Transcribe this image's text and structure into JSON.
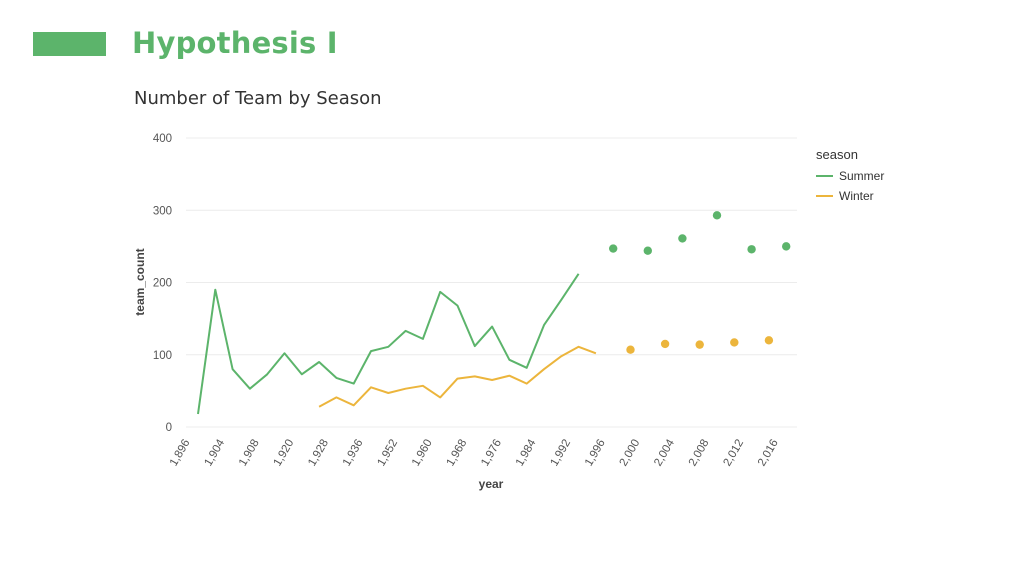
{
  "slide": {
    "title": "Hypothesis I",
    "accent_color": "#5cb46b"
  },
  "chart_data": {
    "type": "line",
    "title": "Number of Team by Season",
    "xlabel": "year",
    "ylabel": "team_count",
    "xlim": [
      1896,
      2016
    ],
    "ylim": [
      0,
      400
    ],
    "x_ticks": [
      "1,896",
      "1,904",
      "1,908",
      "1,920",
      "1,928",
      "1,936",
      "1,952",
      "1,960",
      "1,968",
      "1,976",
      "1,984",
      "1,992",
      "1,996",
      "2,000",
      "2,004",
      "2,008",
      "2,012",
      "2,016"
    ],
    "y_ticks": [
      0,
      100,
      200,
      300,
      400
    ],
    "grid": "horizontal",
    "legend": {
      "title": "season",
      "position": "right"
    },
    "series": [
      {
        "name": "Summer",
        "color": "#5cb46b",
        "line": [
          [
            0,
            18
          ],
          [
            1,
            190
          ],
          [
            2,
            80
          ],
          [
            3,
            53
          ],
          [
            4,
            73
          ],
          [
            5,
            102
          ],
          [
            6,
            73
          ],
          [
            7,
            90
          ],
          [
            8,
            68
          ],
          [
            9,
            60
          ],
          [
            10,
            105
          ],
          [
            11,
            111
          ],
          [
            12,
            133
          ],
          [
            13,
            122
          ],
          [
            14,
            187
          ],
          [
            15,
            168
          ],
          [
            16,
            112
          ],
          [
            17,
            139
          ],
          [
            18,
            93
          ],
          [
            19,
            82
          ],
          [
            20,
            141
          ],
          [
            21,
            176
          ],
          [
            22,
            212
          ]
        ],
        "points": [
          [
            24,
            247
          ],
          [
            26,
            244
          ],
          [
            28,
            261
          ],
          [
            30,
            293
          ],
          [
            32,
            246
          ],
          [
            34,
            250
          ]
        ]
      },
      {
        "name": "Winter",
        "color": "#ecb53c",
        "line": [
          [
            7,
            28
          ],
          [
            8,
            41
          ],
          [
            9,
            30
          ],
          [
            10,
            55
          ],
          [
            11,
            47
          ],
          [
            12,
            53
          ],
          [
            13,
            57
          ],
          [
            14,
            41
          ],
          [
            15,
            67
          ],
          [
            16,
            70
          ],
          [
            17,
            65
          ],
          [
            18,
            71
          ],
          [
            19,
            60
          ],
          [
            20,
            80
          ],
          [
            21,
            98
          ],
          [
            22,
            111
          ],
          [
            23,
            102
          ]
        ],
        "points": [
          [
            25,
            107
          ],
          [
            27,
            115
          ],
          [
            29,
            114
          ],
          [
            31,
            117
          ],
          [
            33,
            120
          ]
        ]
      }
    ]
  }
}
